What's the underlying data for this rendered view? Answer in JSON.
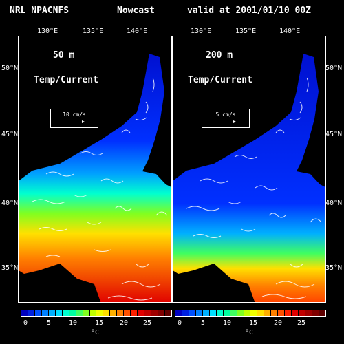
{
  "header": {
    "org": "NRL NPACNFS",
    "mode": "Nowcast",
    "valid": "valid at 2001/01/10 00Z"
  },
  "lon_labels": [
    "130°E",
    "135°E",
    "140°E"
  ],
  "lat_labels": [
    "50°N",
    "45°N",
    "40°N",
    "35°N"
  ],
  "panels": [
    {
      "depth": "50 m",
      "title": "Temp/Current",
      "ref_vector": "10 cm/s"
    },
    {
      "depth": "200 m",
      "title": "Temp/Current",
      "ref_vector": "5 cm/s"
    }
  ],
  "colorbar": {
    "ticks": [
      "0",
      "5",
      "10",
      "15",
      "20",
      "25"
    ],
    "unit": "°C",
    "colors": [
      "#0000c0",
      "#0020e0",
      "#0050ff",
      "#0080ff",
      "#00b0ff",
      "#00e0ff",
      "#00ffd0",
      "#00ffa0",
      "#40ff60",
      "#80ff20",
      "#c0ff00",
      "#f0ff00",
      "#ffe000",
      "#ffb000",
      "#ff8000",
      "#ff5000",
      "#ff2000",
      "#e00000",
      "#c00000",
      "#a00000",
      "#800000",
      "#600000"
    ]
  }
}
